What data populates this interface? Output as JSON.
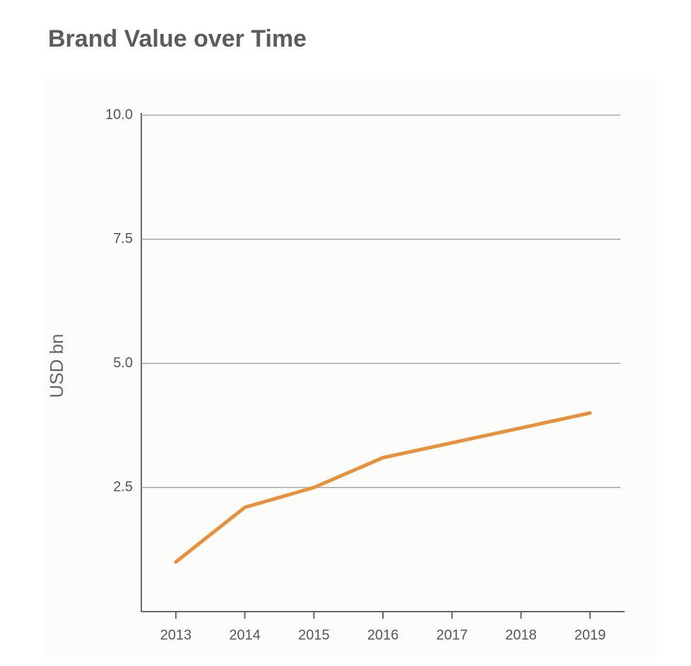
{
  "chart_data": {
    "type": "line",
    "title": "Brand Value over Time",
    "y_label": "USD bn",
    "categories": [
      "2013",
      "2014",
      "2015",
      "2016",
      "2017",
      "2018",
      "2019"
    ],
    "values": [
      1.0,
      2.1,
      2.5,
      3.1,
      3.4,
      3.7,
      4.0
    ],
    "color": "#e8913a",
    "ylim": [
      0,
      10
    ],
    "yticks": [
      {
        "value": 2.5,
        "label": "2.5"
      },
      {
        "value": 5,
        "label": "5.0"
      },
      {
        "value": 7.5,
        "label": "7.5"
      },
      {
        "value": 10,
        "label": "10.0"
      }
    ],
    "grid": true
  }
}
